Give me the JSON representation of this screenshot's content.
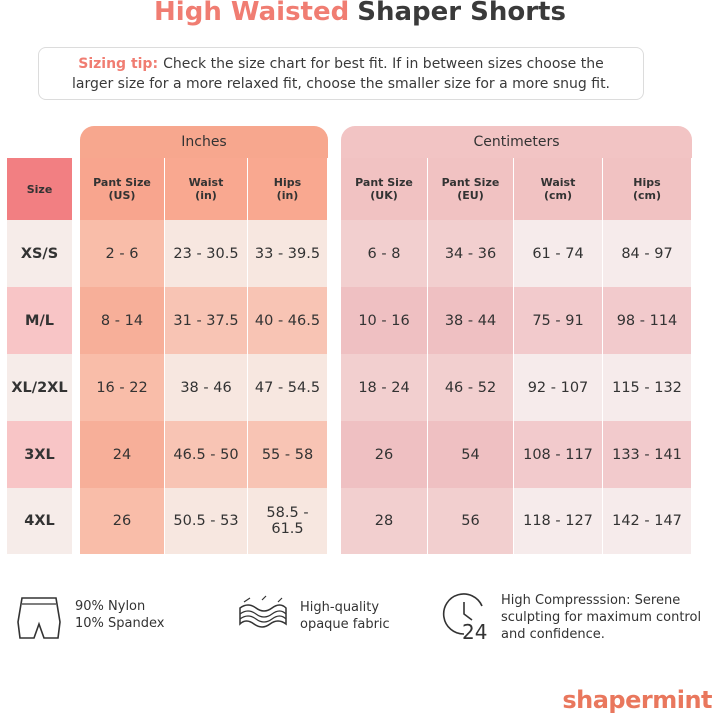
{
  "title": {
    "highlight": "High Waisted",
    "rest": "Shaper Shorts"
  },
  "tip": {
    "label": "Sizing tip:",
    "text": "Check the size chart for best fit. If in between sizes choose the larger size for a more relaxed fit, choose the smaller size for a more snug fit."
  },
  "table": {
    "groups": [
      "Inches",
      "Centimeters"
    ],
    "columns": [
      "Size",
      "Pant Size\n(US)",
      "Waist\n(in)",
      "Hips\n(in)",
      "Pant Size\n(UK)",
      "Pant Size\n(EU)",
      "Waist\n(cm)",
      "Hips\n(cm)"
    ],
    "rows": [
      [
        "XS/S",
        "2 - 6",
        "23 - 30.5",
        "33 - 39.5",
        "6 - 8",
        "34 - 36",
        "61 - 74",
        "84 - 97"
      ],
      [
        "M/L",
        "8 - 14",
        "31 - 37.5",
        "40 - 46.5",
        "10 - 16",
        "38 - 44",
        "75 - 91",
        "98 - 114"
      ],
      [
        "XL/2XL",
        "16 - 22",
        "38 - 46",
        "47 - 54.5",
        "18 - 24",
        "46 - 52",
        "92 - 107",
        "115 - 132"
      ],
      [
        "3XL",
        "24",
        "46.5 - 50",
        "55 - 58",
        "26",
        "54",
        "108 - 117",
        "133 - 141"
      ],
      [
        "4XL",
        "26",
        "50.5 - 53",
        "58.5 - 61.5",
        "28",
        "56",
        "118 - 127",
        "142 - 147"
      ]
    ]
  },
  "features": [
    "90% Nylon\n10% Spandex",
    "High-quality\nopaque fabric",
    "High Compresssion: Serene\nsculpting for maximum control\nand confidence."
  ],
  "brand": "shapermint"
}
